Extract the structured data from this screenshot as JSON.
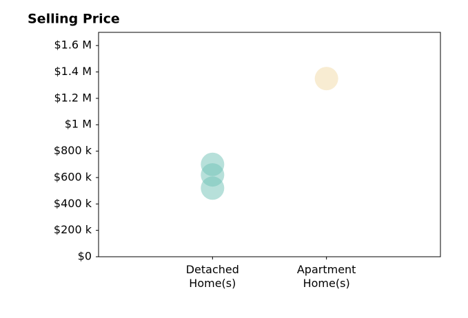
{
  "chart_data": {
    "type": "scatter",
    "title": "Selling Price",
    "xlim": [
      0,
      3
    ],
    "xticks": [
      {
        "value": 1,
        "label": "Detached Home(s)"
      },
      {
        "value": 2,
        "label": "Apartment Home(s)"
      }
    ],
    "ylim": [
      0,
      1700000
    ],
    "yticks": [
      {
        "value": 0,
        "label": "$0"
      },
      {
        "value": 200000,
        "label": "$200 k"
      },
      {
        "value": 400000,
        "label": "$400 k"
      },
      {
        "value": 600000,
        "label": "$600 k"
      },
      {
        "value": 800000,
        "label": "$800 k"
      },
      {
        "value": 1000000,
        "label": "$1 M"
      },
      {
        "value": 1200000,
        "label": "$1.2 M"
      },
      {
        "value": 1400000,
        "label": "$1.4 M"
      },
      {
        "value": 1600000,
        "label": "$1.6 M"
      }
    ],
    "series": [
      {
        "color": "#6fc1b5",
        "x": [
          1,
          1,
          1
        ],
        "values": [
          700000,
          620000,
          520000
        ]
      },
      {
        "color": "#f2d9a6",
        "x": [
          2
        ],
        "values": [
          1350000
        ]
      }
    ]
  }
}
